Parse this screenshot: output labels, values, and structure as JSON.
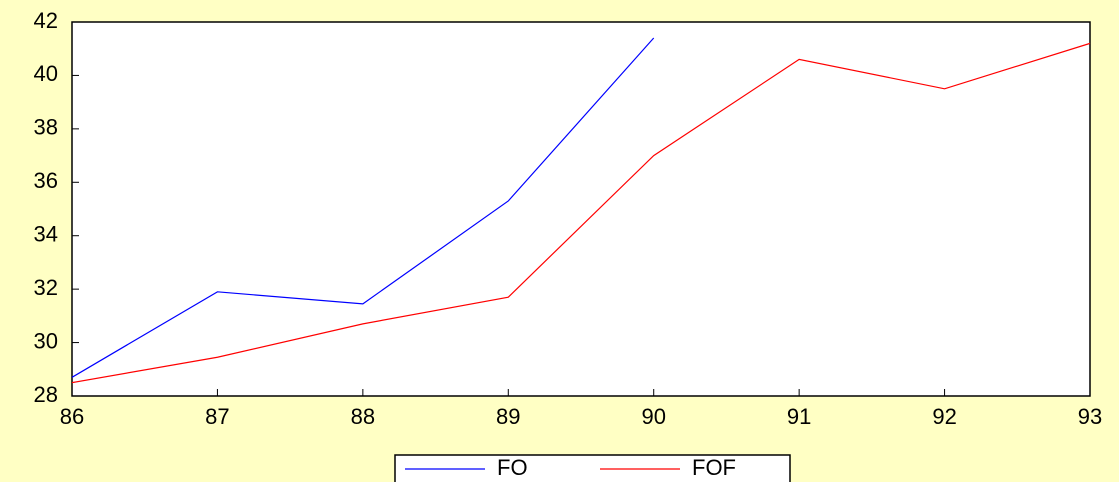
{
  "chart_data": {
    "type": "line",
    "x": [
      86,
      87,
      88,
      89,
      90,
      91,
      92,
      93
    ],
    "series": [
      {
        "name": "FO",
        "color": "#0000ff",
        "values": [
          28.7,
          31.9,
          31.45,
          35.3,
          41.4,
          null,
          null,
          null
        ]
      },
      {
        "name": "FOF",
        "color": "#ff0000",
        "values": [
          28.5,
          29.45,
          30.7,
          31.7,
          37.0,
          40.6,
          39.5,
          41.2
        ]
      }
    ],
    "xlim": [
      86,
      93
    ],
    "xticks": [
      86,
      87,
      88,
      89,
      90,
      91,
      92,
      93
    ],
    "ylim": [
      28,
      42
    ],
    "yticks": [
      28,
      30,
      32,
      34,
      36,
      38,
      40,
      42
    ],
    "legend": "bottom"
  }
}
